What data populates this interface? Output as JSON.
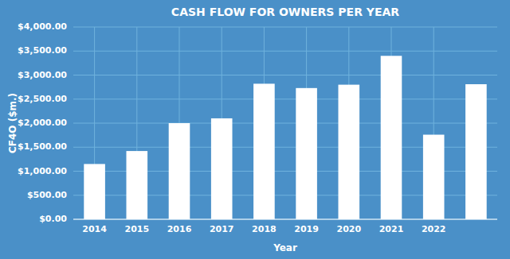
{
  "chart_data": {
    "type": "bar",
    "title": "CASH FLOW FOR OWNERS PER YEAR",
    "xlabel": "Year",
    "ylabel": "CF4O ($m.)",
    "categories": [
      "2014",
      "2015",
      "2016",
      "2017",
      "2018",
      "2019",
      "2020",
      "2021",
      "2022",
      null
    ],
    "values": [
      1150,
      1420,
      2000,
      2100,
      2820,
      2730,
      2800,
      3400,
      1760,
      2810
    ],
    "color": "#FFFFFF",
    "ylim": [
      0,
      4000
    ],
    "yticks": [
      {
        "value": 0,
        "label": "$0.00"
      },
      {
        "value": 500,
        "label": "$500.00"
      },
      {
        "value": 1000,
        "label": "$1,000.00"
      },
      {
        "value": 1500,
        "label": "$1,500.00"
      },
      {
        "value": 2000,
        "label": "$2,000.00"
      },
      {
        "value": 2500,
        "label": "$2,500.00"
      },
      {
        "value": 3000,
        "label": "$3,000.00"
      },
      {
        "value": 3500,
        "label": "$3,500.00"
      },
      {
        "value": 4000,
        "label": "$4,000.00"
      }
    ],
    "grid": true
  }
}
